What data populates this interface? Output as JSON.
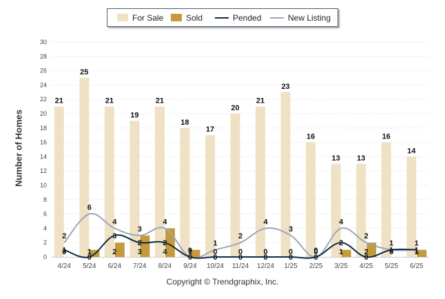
{
  "chart_data": {
    "type": "bar",
    "categories": [
      "4/24",
      "5/24",
      "6/24",
      "7/24",
      "8/24",
      "9/24",
      "10/24",
      "11/24",
      "12/24",
      "1/25",
      "2/25",
      "3/25",
      "4/25",
      "5/25",
      "6/25"
    ],
    "ylabel": "Number of Homes",
    "ylim": [
      0,
      30
    ],
    "yticks": [
      0,
      2,
      4,
      6,
      8,
      10,
      12,
      14,
      16,
      18,
      20,
      22,
      24,
      26,
      28,
      30
    ],
    "grid": true,
    "legend_position": "top-center",
    "series": [
      {
        "name": "For Sale",
        "kind": "bar",
        "color": "#efe1c3",
        "values": [
          21,
          25,
          21,
          19,
          21,
          18,
          17,
          20,
          21,
          23,
          16,
          13,
          13,
          16,
          14
        ]
      },
      {
        "name": "Sold",
        "kind": "bar",
        "color": "#c49a3c",
        "values": [
          0,
          1,
          2,
          3,
          4,
          1,
          0,
          0,
          0,
          0,
          0,
          1,
          2,
          0,
          1
        ]
      },
      {
        "name": "Pended",
        "kind": "line",
        "color": "#0e2a47",
        "values": [
          1,
          0,
          3,
          2,
          2,
          0,
          0,
          0,
          0,
          0,
          0,
          2,
          0,
          1,
          1
        ]
      },
      {
        "name": "New Listing",
        "kind": "line",
        "color": "#9aa6ba",
        "values": [
          2,
          6,
          4,
          3,
          4,
          0,
          1,
          2,
          4,
          3,
          0,
          4,
          2,
          1,
          1
        ]
      }
    ]
  },
  "copyright": "Copyright © Trendgraphix, Inc."
}
